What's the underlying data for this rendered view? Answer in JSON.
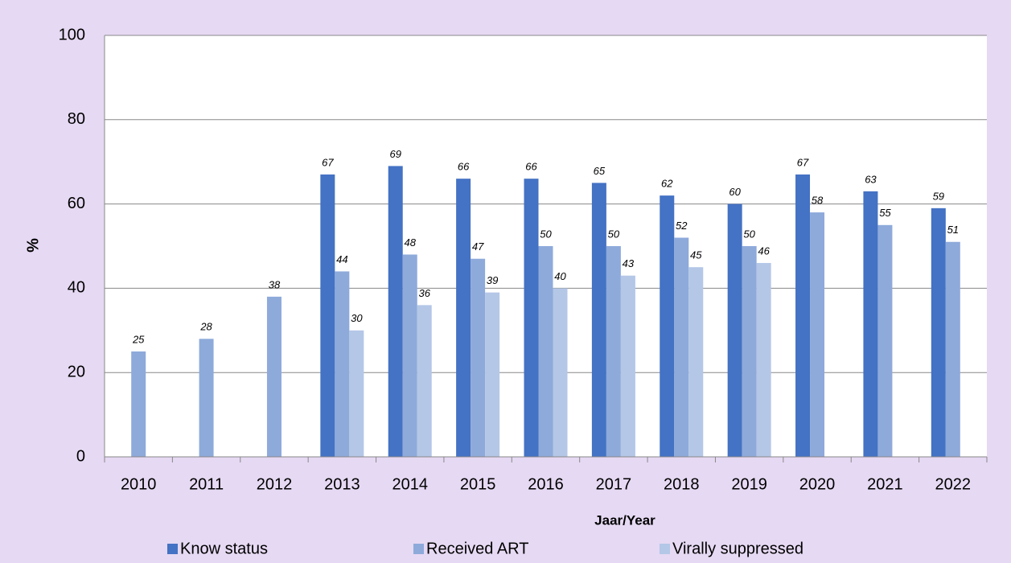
{
  "chart_data": {
    "type": "bar",
    "categories": [
      "2010",
      "2011",
      "2012",
      "2013",
      "2014",
      "2015",
      "2016",
      "2017",
      "2018",
      "2019",
      "2020",
      "2021",
      "2022"
    ],
    "series": [
      {
        "name": "Know status",
        "color": "#4472c4",
        "values": [
          null,
          null,
          null,
          67,
          69,
          66,
          66,
          65,
          62,
          60,
          67,
          63,
          59
        ]
      },
      {
        "name": "Received ART",
        "color": "#8eaadb",
        "values": [
          25,
          28,
          38,
          44,
          48,
          47,
          50,
          50,
          52,
          50,
          58,
          55,
          51
        ]
      },
      {
        "name": "Virally suppressed",
        "color": "#b4c7e7",
        "values": [
          null,
          null,
          null,
          30,
          36,
          39,
          40,
          43,
          45,
          46,
          null,
          null,
          null
        ]
      }
    ],
    "ylabel": "%",
    "xlabel": "Jaar/Year",
    "ylim": [
      0,
      100
    ],
    "yticks": [
      0,
      20,
      40,
      60,
      80,
      100
    ],
    "grid": true,
    "legend": "bottom"
  }
}
